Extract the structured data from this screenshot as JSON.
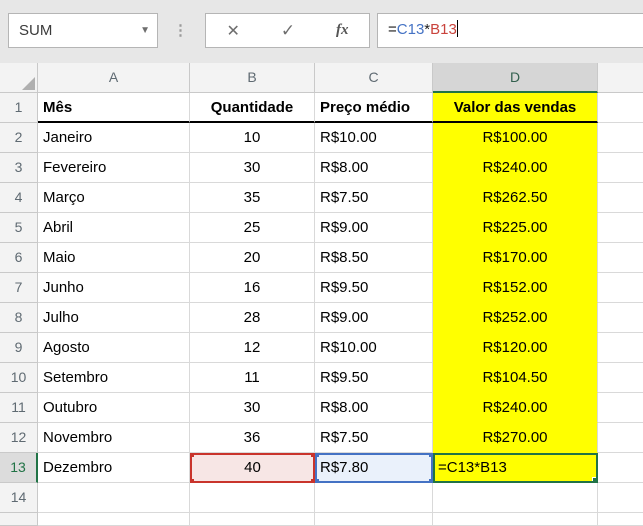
{
  "formula_bar": {
    "name_box_value": "SUM",
    "dropdown_icon": "▼",
    "cancel_label": "✕",
    "enter_label": "✓",
    "fx_label": "fx",
    "separator": "⋮",
    "formula_parts": {
      "eq": "=",
      "ref_c": "C13",
      "times": "*",
      "ref_b": "B13"
    }
  },
  "sheet": {
    "column_headers": [
      "A",
      "B",
      "C",
      "D"
    ],
    "header_row": {
      "number": "1",
      "mes": "Mês",
      "quantidade": "Quantidade",
      "preco": "Preço médio",
      "valor": "Valor das vendas"
    },
    "rows": [
      {
        "number": "2",
        "mes": "Janeiro",
        "quantidade": "10",
        "preco": "R$10.00",
        "valor": "R$100.00"
      },
      {
        "number": "3",
        "mes": "Fevereiro",
        "quantidade": "30",
        "preco": "R$8.00",
        "valor": "R$240.00"
      },
      {
        "number": "4",
        "mes": "Março",
        "quantidade": "35",
        "preco": "R$7.50",
        "valor": "R$262.50"
      },
      {
        "number": "5",
        "mes": "Abril",
        "quantidade": "25",
        "preco": "R$9.00",
        "valor": "R$225.00"
      },
      {
        "number": "6",
        "mes": "Maio",
        "quantidade": "20",
        "preco": "R$8.50",
        "valor": "R$170.00"
      },
      {
        "number": "7",
        "mes": "Junho",
        "quantidade": "16",
        "preco": "R$9.50",
        "valor": "R$152.00"
      },
      {
        "number": "8",
        "mes": "Julho",
        "quantidade": "28",
        "preco": "R$9.00",
        "valor": "R$252.00"
      },
      {
        "number": "9",
        "mes": "Agosto",
        "quantidade": "12",
        "preco": "R$10.00",
        "valor": "R$120.00"
      },
      {
        "number": "10",
        "mes": "Setembro",
        "quantidade": "11",
        "preco": "R$9.50",
        "valor": "R$104.50"
      },
      {
        "number": "11",
        "mes": "Outubro",
        "quantidade": "30",
        "preco": "R$8.00",
        "valor": "R$240.00"
      },
      {
        "number": "12",
        "mes": "Novembro",
        "quantidade": "36",
        "preco": "R$7.50",
        "valor": "R$270.00"
      },
      {
        "number": "13",
        "mes": "Dezembro",
        "quantidade": "40",
        "preco": "R$7.80",
        "valor": "=C13*B13"
      },
      {
        "number": "14",
        "mes": "",
        "quantidade": "",
        "preco": "",
        "valor": ""
      }
    ],
    "active_cell": "D13",
    "referenced_cells": {
      "red": "B13",
      "blue": "C13"
    }
  },
  "colors": {
    "highlight_yellow": "#FFFF00",
    "active_green": "#217346",
    "ref_blue": "#4472C4",
    "ref_red": "#C9342C",
    "ref_blue_fill": "#EAF1FB",
    "ref_red_fill": "#F7E6E5"
  }
}
